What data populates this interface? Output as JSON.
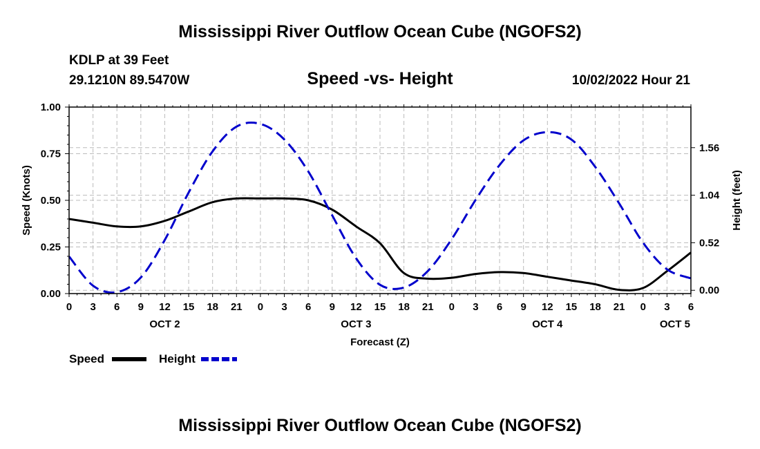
{
  "header": {
    "title": "Mississippi River Outflow Ocean Cube (NGOFS2)",
    "station": "KDLP at 39 Feet",
    "coords": "29.1210N  89.5470W",
    "subtitle": "Speed -vs- Height",
    "datetime": "10/02/2022 Hour 21"
  },
  "footer": {
    "title": "Mississippi River Outflow Ocean Cube (NGOFS2)"
  },
  "colors": {
    "speed": "#000000",
    "height": "#0000cc",
    "grid": "#bbbbbb"
  },
  "chart_data": {
    "type": "line",
    "title": "Speed -vs- Height",
    "xlabel": "Forecast (Z)",
    "ylabel": "Speed (Knots)",
    "y2label": "Height (feet)",
    "x_unit": "hours since 2022-10-02 00Z",
    "xlim": [
      0,
      78
    ],
    "ylim": [
      0,
      1.0
    ],
    "y2lim": [
      -0.036,
      2.004
    ],
    "x_ticks": [
      0,
      3,
      6,
      9,
      12,
      15,
      18,
      21,
      24,
      27,
      30,
      33,
      36,
      39,
      42,
      45,
      48,
      51,
      54,
      57,
      60,
      63,
      66,
      69,
      72,
      75,
      78
    ],
    "x_tick_labels": [
      "0",
      "3",
      "6",
      "9",
      "12",
      "15",
      "18",
      "21",
      "0",
      "3",
      "6",
      "9",
      "12",
      "15",
      "18",
      "21",
      "0",
      "3",
      "6",
      "9",
      "12",
      "15",
      "18",
      "21",
      "0",
      "3",
      "6"
    ],
    "date_labels": [
      {
        "x": 12,
        "label": "OCT 2"
      },
      {
        "x": 36,
        "label": "OCT 3"
      },
      {
        "x": 60,
        "label": "OCT 4"
      },
      {
        "x": 76,
        "label": "OCT 5"
      }
    ],
    "y_ticks": [
      0,
      0.25,
      0.5,
      0.75,
      1.0
    ],
    "y_tick_labels": [
      "0.00",
      "0.25",
      "0.50",
      "0.75",
      "1.00"
    ],
    "y2_ticks": [
      0,
      0.52,
      1.04,
      1.56
    ],
    "y2_tick_labels": [
      "0.00",
      "0.52",
      "1.04",
      "1.56"
    ],
    "grid": true,
    "legend": {
      "placement": "bottom-left",
      "entries": [
        "Speed",
        "Height"
      ]
    },
    "series": [
      {
        "name": "Speed",
        "axis": "left",
        "style": "solid",
        "x": [
          0,
          3,
          6,
          9,
          12,
          15,
          18,
          21,
          24,
          27,
          30,
          33,
          36,
          39,
          42,
          45,
          48,
          51,
          54,
          57,
          60,
          63,
          66,
          69,
          72,
          75,
          78
        ],
        "values": [
          0.4,
          0.38,
          0.36,
          0.36,
          0.39,
          0.44,
          0.49,
          0.51,
          0.51,
          0.51,
          0.5,
          0.45,
          0.36,
          0.27,
          0.11,
          0.08,
          0.085,
          0.105,
          0.115,
          0.11,
          0.09,
          0.07,
          0.05,
          0.02,
          0.03,
          0.12,
          0.22
        ]
      },
      {
        "name": "Height",
        "axis": "right",
        "style": "dashed",
        "x": [
          0,
          3,
          6,
          9,
          12,
          15,
          18,
          21,
          24,
          27,
          30,
          33,
          36,
          39,
          42,
          45,
          48,
          51,
          54,
          57,
          60,
          63,
          66,
          69,
          72,
          75,
          78
        ],
        "values": [
          0.37,
          0.05,
          -0.02,
          0.14,
          0.55,
          1.07,
          1.52,
          1.79,
          1.82,
          1.65,
          1.3,
          0.82,
          0.35,
          0.06,
          0.03,
          0.21,
          0.56,
          0.99,
          1.37,
          1.64,
          1.73,
          1.65,
          1.35,
          0.95,
          0.52,
          0.23,
          0.13
        ]
      }
    ]
  }
}
